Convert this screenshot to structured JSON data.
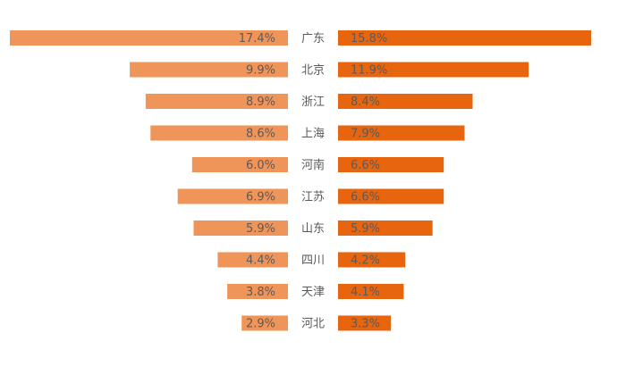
{
  "chart_data": {
    "type": "bar",
    "orientation": "horizontal-butterfly",
    "categories": [
      "广东",
      "北京",
      "浙江",
      "上海",
      "河南",
      "江苏",
      "山东",
      "四川",
      "天津",
      "河北"
    ],
    "series": [
      {
        "name": "left",
        "values": [
          17.4,
          9.9,
          8.9,
          8.6,
          6.0,
          6.9,
          5.9,
          4.4,
          3.8,
          2.9
        ],
        "labels": [
          "17.4%",
          "9.9%",
          "8.9%",
          "8.6%",
          "6.0%",
          "6.9%",
          "5.9%",
          "4.4%",
          "3.8%",
          "2.9%"
        ],
        "color": "#F0955A"
      },
      {
        "name": "right",
        "values": [
          15.8,
          11.9,
          8.4,
          7.9,
          6.6,
          6.6,
          5.9,
          4.2,
          4.1,
          3.3
        ],
        "labels": [
          "15.8%",
          "11.9%",
          "8.4%",
          "7.9%",
          "6.6%",
          "6.6%",
          "5.9%",
          "4.2%",
          "4.1%",
          "3.3%"
        ],
        "color": "#E8650F"
      }
    ],
    "label_color": "#5a5a5a",
    "title": "",
    "xlabel": "",
    "ylabel": ""
  }
}
